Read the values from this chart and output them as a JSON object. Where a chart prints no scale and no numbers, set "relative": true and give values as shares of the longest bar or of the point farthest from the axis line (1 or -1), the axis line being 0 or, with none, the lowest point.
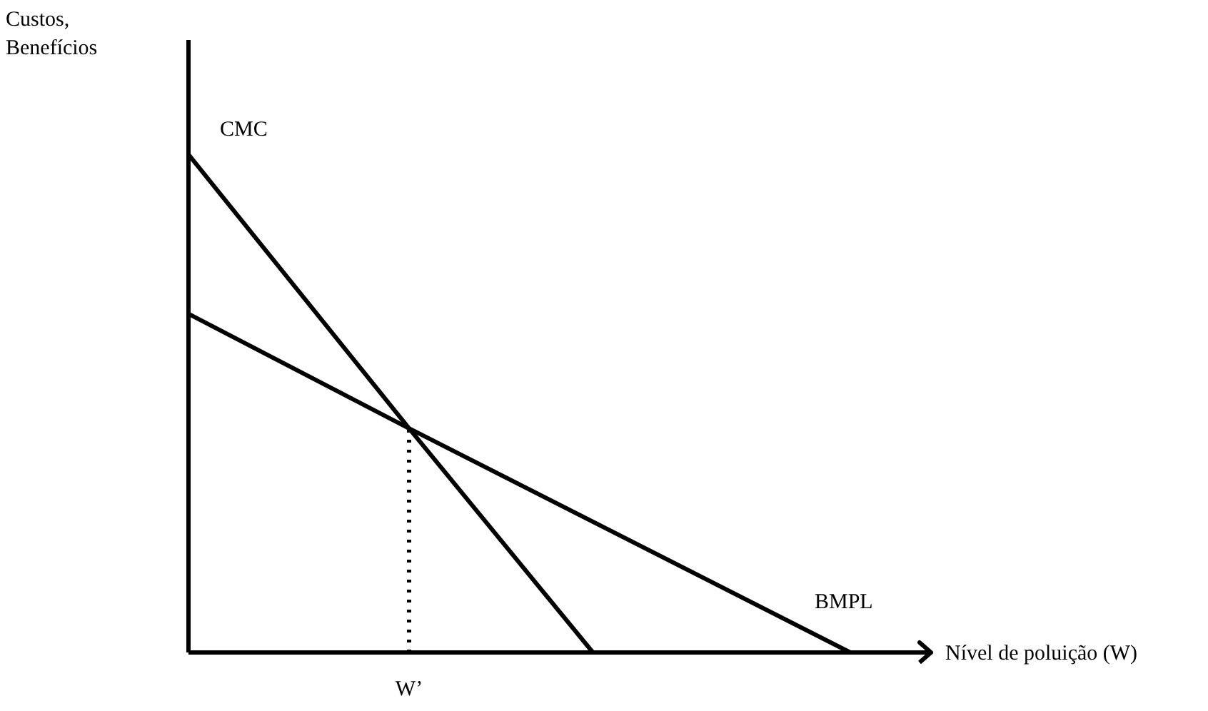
{
  "chart_data": {
    "type": "line",
    "relative": true,
    "xlabel": "Nível de poluição (W)",
    "line_style": "solid",
    "marker": "none",
    "grid": false,
    "legend": false,
    "tick_labels": false,
    "categories": [
      null,
      null,
      null,
      null,
      null,
      null,
      null,
      null,
      null,
      null,
      null,
      null,
      null,
      null,
      null,
      null,
      null,
      null,
      null,
      null,
      null
    ],
    "series": [
      {
        "name": "CMC",
        "color": "#000000",
        "values": [
          1,
          null,
          null,
          null,
          null,
          null,
          0.45,
          null,
          null,
          null,
          null,
          0,
          null,
          null,
          null,
          null,
          null,
          null,
          null,
          null,
          null
        ]
      },
      {
        "name": "BMPL",
        "color": "#000000",
        "values": [
          0.68,
          null,
          null,
          null,
          null,
          null,
          0.45,
          null,
          null,
          null,
          null,
          null,
          null,
          null,
          null,
          null,
          null,
          null,
          0,
          null,
          null
        ]
      }
    ],
    "annotations": [
      "Custos,\nBenefícios",
      "W’"
    ]
  }
}
